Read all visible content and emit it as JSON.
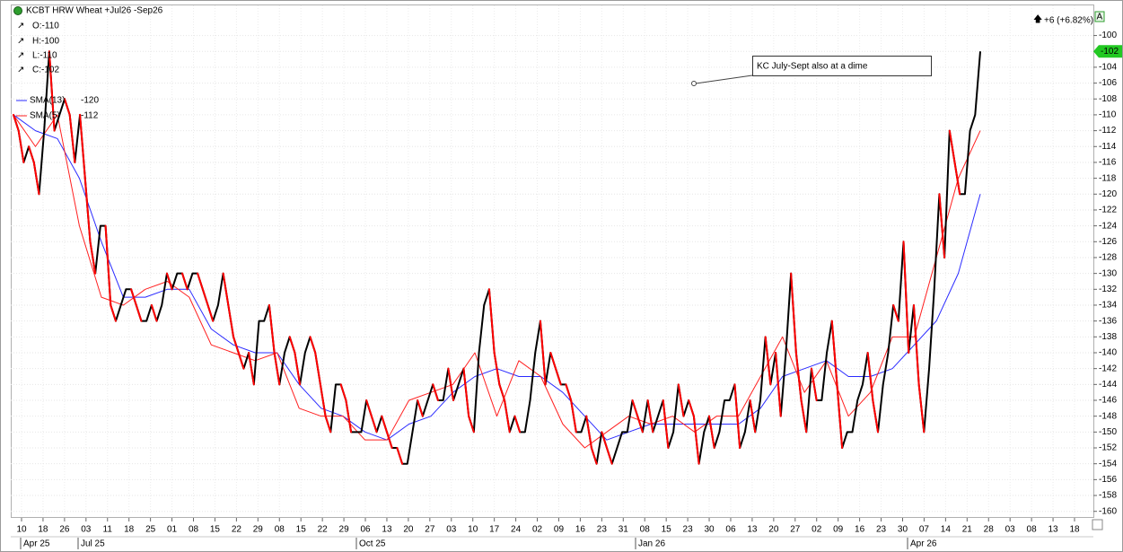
{
  "chart_data": {
    "type": "line",
    "title": "KCBT HRW Wheat +Jul26 -Sep26",
    "ohlc_labels": [
      "O:-110",
      "H:-100",
      "L:-110",
      "C:-102"
    ],
    "change_label": "+6 (+6.82%)",
    "annotation": "KC July-Sept also at a dime",
    "xtick_labels": [
      "10",
      "18",
      "26",
      "03",
      "11",
      "18",
      "25",
      "01",
      "08",
      "15",
      "22",
      "29",
      "08",
      "15",
      "22",
      "29",
      "06",
      "13",
      "20",
      "27",
      "03",
      "10",
      "17",
      "24",
      "02",
      "09",
      "16",
      "23",
      "31",
      "08",
      "15",
      "23",
      "30",
      "06",
      "13",
      "20",
      "27",
      "02",
      "09",
      "16",
      "23",
      "30",
      "07",
      "14",
      "21",
      "28",
      "03",
      "08",
      "13",
      "18"
    ],
    "month_labels": [
      "Apr 25",
      "Jul 25",
      "Oct 25",
      "Jan 26",
      "Apr 26"
    ],
    "up_color": "#000000",
    "down_color": "#ff0000",
    "values": [
      -110,
      -112,
      -116,
      -114,
      -116,
      -120,
      -112,
      -102,
      -112,
      -110,
      -108,
      -110,
      -116,
      -110,
      -118,
      -126,
      -130,
      -124,
      -124,
      -134,
      -136,
      -134,
      -132,
      -132,
      -134,
      -136,
      -136,
      -134,
      -136,
      -134,
      -130,
      -132,
      -130,
      -130,
      -132,
      -130,
      -130,
      -132,
      -134,
      -136,
      -134,
      -130,
      -134,
      -138,
      -140,
      -142,
      -140,
      -144,
      -136,
      -136,
      -134,
      -140,
      -144,
      -140,
      -138,
      -140,
      -144,
      -140,
      -138,
      -140,
      -144,
      -148,
      -150,
      -144,
      -144,
      -146,
      -150,
      -150,
      -150,
      -146,
      -148,
      -150,
      -148,
      -150,
      -152,
      -152,
      -154,
      -154,
      -150,
      -146,
      -148,
      -146,
      -144,
      -146,
      -146,
      -142,
      -146,
      -144,
      -142,
      -148,
      -150,
      -140,
      -134,
      -132,
      -140,
      -144,
      -146,
      -150,
      -148,
      -150,
      -150,
      -146,
      -140,
      -136,
      -144,
      -140,
      -142,
      -144,
      -144,
      -146,
      -150,
      -150,
      -148,
      -152,
      -154,
      -150,
      -152,
      -154,
      -152,
      -150,
      -150,
      -146,
      -148,
      -150,
      -146,
      -150,
      -148,
      -146,
      -152,
      -150,
      -144,
      -148,
      -146,
      -148,
      -154,
      -150,
      -148,
      -152,
      -150,
      -146,
      -146,
      -144,
      -152,
      -150,
      -146,
      -150,
      -146,
      -138,
      -144,
      -140,
      -148,
      -140,
      -130,
      -140,
      -146,
      -150,
      -142,
      -146,
      -146,
      -140,
      -136,
      -144,
      -152,
      -150,
      -150,
      -146,
      -144,
      -140,
      -146,
      -150,
      -144,
      -140,
      -134,
      -136,
      -126,
      -140,
      -134,
      -144,
      -150,
      -142,
      -132,
      -120,
      -128,
      -112,
      -116,
      -120,
      -120,
      -112,
      -110,
      -102
    ],
    "series": [
      {
        "name": "SMA(13)",
        "color": "#2b2bff",
        "values": [
          -110,
          -112,
          -113,
          -118,
          -126,
          -133,
          -133,
          -132,
          -132,
          -137,
          -139,
          -140,
          -140,
          -144,
          -147,
          -148,
          -150,
          -151,
          -149,
          -148,
          -145,
          -143,
          -142,
          -143,
          -143,
          -145,
          -148,
          -151,
          -150,
          -149,
          -149,
          -149,
          -149,
          -149,
          -147,
          -143,
          -142,
          -141,
          -143,
          -143,
          -142,
          -139,
          -136,
          -130,
          -120
        ]
      },
      {
        "name": "SMA(5)",
        "color": "#ff2020",
        "values": [
          -110,
          -114,
          -110,
          -124,
          -133,
          -134,
          -132,
          -131,
          -133,
          -139,
          -140,
          -141,
          -140,
          -147,
          -148,
          -148,
          -151,
          -151,
          -146,
          -145,
          -144,
          -140,
          -148,
          -141,
          -143,
          -149,
          -152,
          -150,
          -148,
          -149,
          -148,
          -150,
          -148,
          -148,
          -143,
          -138,
          -145,
          -141,
          -148,
          -145,
          -138,
          -138,
          -128,
          -118,
          -112
        ]
      }
    ],
    "ylim": [
      -96.2,
      -160.6
    ],
    "yticks": [
      -100,
      -102,
      -104,
      -106,
      -108,
      -110,
      -112,
      -114,
      -116,
      -118,
      -120,
      -122,
      -124,
      -126,
      -128,
      -130,
      -132,
      -134,
      -136,
      -138,
      -140,
      -142,
      -144,
      -146,
      -148,
      -150,
      -152,
      -154,
      -156,
      -158,
      -160
    ],
    "grid": true
  }
}
